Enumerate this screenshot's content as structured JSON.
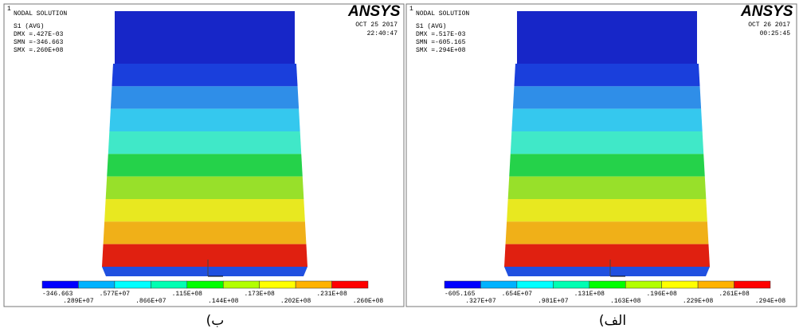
{
  "panels": [
    {
      "corner": "1",
      "title": "NODAL SOLUTION",
      "result": "S1        (AVG)",
      "dmx": "DMX =.427E-03",
      "smn": "SMN =-346.663",
      "smx": "SMX =.260E+08",
      "logo": "ANSYS",
      "date": "OCT 25 2017",
      "time": "22:40:47",
      "legend": [
        "-346.663",
        ".289E+07",
        ".577E+07",
        ".866E+07",
        ".115E+08",
        ".144E+08",
        ".173E+08",
        ".202E+08",
        ".231E+08",
        ".260E+08"
      ],
      "caption": "ب)"
    },
    {
      "corner": "1",
      "title": "NODAL SOLUTION",
      "result": "S1        (AVG)",
      "dmx": "DMX =.517E-03",
      "smn": "SMN =-605.165",
      "smx": "SMX =.294E+08",
      "logo": "ANSYS",
      "date": "OCT 26 2017",
      "time": "00:25:45",
      "legend": [
        "-605.165",
        ".327E+07",
        ".654E+07",
        ".981E+07",
        ".131E+08",
        ".163E+08",
        ".196E+08",
        ".229E+08",
        ".261E+08",
        ".294E+08"
      ],
      "caption": "الف)"
    }
  ]
}
